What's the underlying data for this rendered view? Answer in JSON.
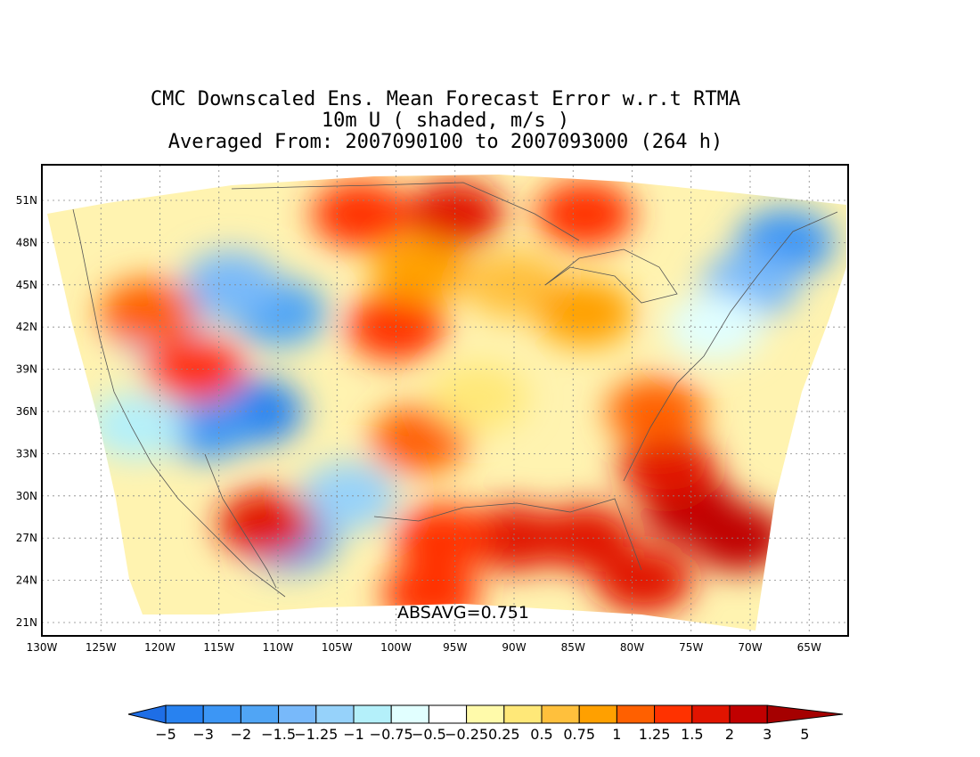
{
  "title": {
    "line1": "CMC Downscaled Ens. Mean Forecast Error w.r.t RTMA",
    "line2": "10m U ( shaded, m/s )",
    "line3": "Averaged From: 2007090100 to 2007093000 (264 h)"
  },
  "annotation": {
    "absavg": "ABSAVG=0.751"
  },
  "map": {
    "lat_labels": [
      "51N",
      "48N",
      "45N",
      "42N",
      "39N",
      "36N",
      "33N",
      "30N",
      "27N",
      "24N",
      "21N"
    ],
    "lon_labels": [
      "130W",
      "125W",
      "120W",
      "115W",
      "110W",
      "105W",
      "100W",
      "95W",
      "90W",
      "85W",
      "80W",
      "75W",
      "70W",
      "65W"
    ],
    "lat_values": [
      51,
      48,
      45,
      42,
      39,
      36,
      33,
      30,
      27,
      24,
      21
    ],
    "lon_values": [
      -130,
      -125,
      -120,
      -115,
      -110,
      -105,
      -100,
      -95,
      -90,
      -85,
      -80,
      -75,
      -70,
      -65
    ],
    "blobs": [
      {
        "lon": -112,
        "lat": 36,
        "value": -3
      },
      {
        "lon": -116,
        "lat": 35,
        "value": -2
      },
      {
        "lon": -110,
        "lat": 43,
        "value": -1.5
      },
      {
        "lon": -114,
        "lat": 45,
        "value": -1.25
      },
      {
        "lon": -120,
        "lat": 42,
        "value": -1
      },
      {
        "lon": -109,
        "lat": 27,
        "value": -1.5
      },
      {
        "lon": -104,
        "lat": 30,
        "value": -1
      },
      {
        "lon": -122,
        "lat": 35,
        "value": -0.75
      },
      {
        "lon": -67,
        "lat": 48,
        "value": -2
      },
      {
        "lon": -70,
        "lat": 45,
        "value": -1.25
      },
      {
        "lon": -73,
        "lat": 42,
        "value": -0.5
      },
      {
        "lon": -95,
        "lat": 50,
        "value": 2
      },
      {
        "lon": -103,
        "lat": 50,
        "value": 1.5
      },
      {
        "lon": -84,
        "lat": 50,
        "value": 1.5
      },
      {
        "lon": -100,
        "lat": 42,
        "value": 1.5
      },
      {
        "lon": -98,
        "lat": 46,
        "value": 1
      },
      {
        "lon": -90,
        "lat": 45,
        "value": 0.75
      },
      {
        "lon": -84,
        "lat": 43,
        "value": 1
      },
      {
        "lon": -98,
        "lat": 34,
        "value": 1.25
      },
      {
        "lon": -93,
        "lat": 37,
        "value": 0.5
      },
      {
        "lon": -90,
        "lat": 27,
        "value": 2
      },
      {
        "lon": -84,
        "lat": 27,
        "value": 2
      },
      {
        "lon": -96,
        "lat": 27,
        "value": 1.5
      },
      {
        "lon": -97,
        "lat": 23,
        "value": 1.5
      },
      {
        "lon": -75,
        "lat": 29,
        "value": 3
      },
      {
        "lon": -71,
        "lat": 27,
        "value": 3
      },
      {
        "lon": -77,
        "lat": 32,
        "value": 2
      },
      {
        "lon": -79,
        "lat": 24,
        "value": 2
      },
      {
        "lon": -78,
        "lat": 36,
        "value": 1.25
      },
      {
        "lon": -111,
        "lat": 28,
        "value": 2
      },
      {
        "lon": -117,
        "lat": 39,
        "value": 1.5
      },
      {
        "lon": -121,
        "lat": 43,
        "value": 1.25
      }
    ]
  },
  "colorbar": {
    "labels": [
      "−5",
      "−3",
      "−2",
      "−1.5",
      "−1.25",
      "−1",
      "−0.75",
      "−0.5",
      "−0.25",
      "0.25",
      "0.5",
      "0.75",
      "1",
      "1.25",
      "1.5",
      "2",
      "3",
      "5"
    ],
    "levels": [
      -5,
      -3,
      -2,
      -1.5,
      -1.25,
      -1,
      -0.75,
      -0.5,
      -0.25,
      0.25,
      0.5,
      0.75,
      1,
      1.25,
      1.5,
      2,
      3,
      5
    ],
    "colors": [
      "#1e6ee6",
      "#2882f0",
      "#3c96f5",
      "#50a5f5",
      "#78b9fa",
      "#96d2fa",
      "#b4f0fa",
      "#e1ffff",
      "#ffffff",
      "#fffaaa",
      "#ffe878",
      "#ffc03c",
      "#ffa000",
      "#ff6000",
      "#ff3200",
      "#e11400",
      "#c00000",
      "#a50000"
    ]
  }
}
